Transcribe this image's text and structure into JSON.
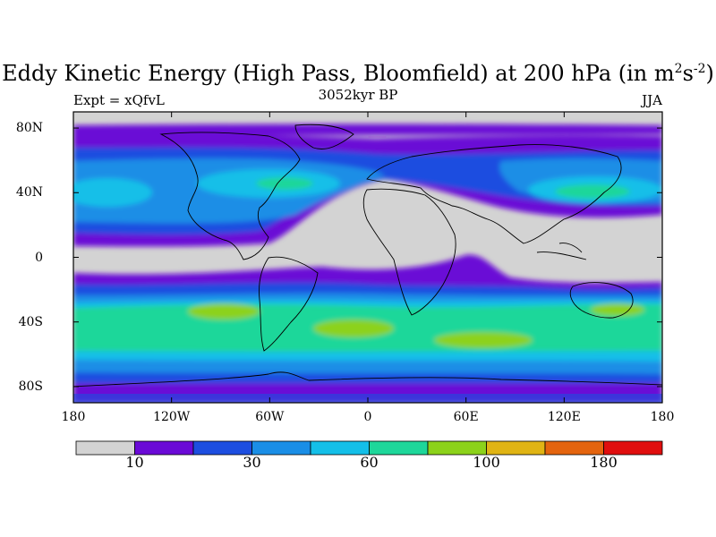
{
  "title": {
    "main": "Eddy Kinetic Energy (High Pass, Bloomfield) at 200 hPa (in m",
    "sup1": "2",
    "mid": "s",
    "sup2": "-2",
    "end": ")"
  },
  "subtitle": {
    "left": "Expt = xQfvL",
    "center": "3052kyr BP",
    "right": "JJA"
  },
  "map": {
    "lat_labels": [
      "80N",
      "40N",
      "0",
      "40S",
      "80S"
    ],
    "lon_labels": [
      "180",
      "120W",
      "60W",
      "0",
      "60E",
      "120E",
      "180"
    ],
    "lat_values": [
      80,
      40,
      0,
      -40,
      -80
    ],
    "lon_values": [
      -180,
      -120,
      -60,
      0,
      60,
      120,
      180
    ],
    "lat_range": [
      -90,
      90
    ],
    "lon_range": [
      -180,
      180
    ]
  },
  "colorbar": {
    "labels": [
      "10",
      "30",
      "60",
      "100",
      "180"
    ],
    "colors": [
      "#d3d3d3",
      "#6a0ad6",
      "#1d4ee0",
      "#1a8ee6",
      "#14bfe8",
      "#1ed79a",
      "#8cd21a",
      "#e0b414",
      "#e4640e",
      "#e00e0e"
    ]
  }
}
